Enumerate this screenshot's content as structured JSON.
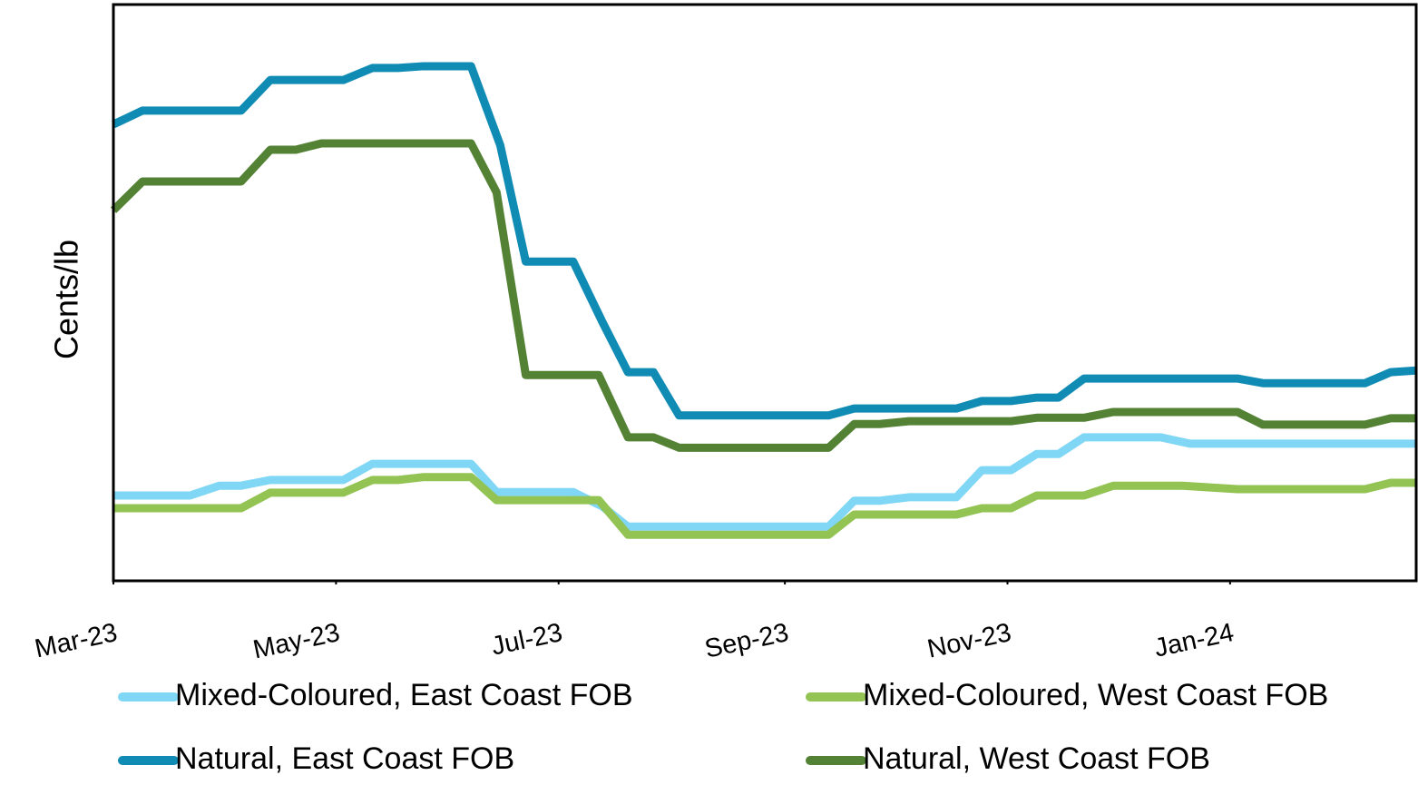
{
  "chart_data": {
    "type": "line",
    "y_label": "Cents/lb",
    "xlim": [
      0,
      357
    ],
    "ylim": [
      0,
      100
    ],
    "xticks": [
      {
        "value": 0,
        "label": "Mar-23"
      },
      {
        "value": 61,
        "label": "May-23"
      },
      {
        "value": 122,
        "label": "Jul-23"
      },
      {
        "value": 184,
        "label": "Sep-23"
      },
      {
        "value": 245,
        "label": "Nov-23"
      },
      {
        "value": 306,
        "label": "Jan-24"
      }
    ],
    "series": [
      {
        "name": "Mixed-Coloured, East Coast FOB",
        "color": "#7fd6f5",
        "x": [
          0,
          21,
          29,
          35,
          43,
          63,
          71,
          98,
          105,
          126,
          134,
          141,
          196,
          203,
          210,
          218,
          231,
          238,
          246,
          253,
          259,
          266,
          287,
          295,
          357
        ],
        "values": [
          14.8,
          14.8,
          16.5,
          16.5,
          17.5,
          17.5,
          20.3,
          20.3,
          15.4,
          15.4,
          12.9,
          9.4,
          9.4,
          13.9,
          13.9,
          14.5,
          14.5,
          19.2,
          19.2,
          22.0,
          22.0,
          24.9,
          24.9,
          23.8,
          23.8
        ]
      },
      {
        "name": "Mixed-Coloured, West Coast FOB",
        "color": "#92c353",
        "x": [
          0,
          35,
          43,
          63,
          71,
          78,
          85,
          98,
          105,
          133,
          141,
          196,
          203,
          231,
          238,
          246,
          253,
          266,
          274,
          293,
          308,
          343,
          350,
          357
        ],
        "values": [
          12.6,
          12.6,
          15.3,
          15.3,
          17.5,
          17.5,
          18.0,
          18.0,
          14.0,
          14.0,
          8.0,
          8.0,
          11.5,
          11.5,
          12.6,
          12.6,
          14.8,
          14.8,
          16.5,
          16.5,
          15.9,
          15.9,
          17.0,
          17.0
        ]
      },
      {
        "name": "Natural, East Coast FOB",
        "color": "#0f8bb4",
        "x": [
          0,
          8,
          35,
          43,
          63,
          71,
          78,
          85,
          98,
          106,
          113,
          126,
          134,
          141,
          148,
          155,
          196,
          203,
          231,
          238,
          246,
          253,
          259,
          266,
          308,
          315,
          343,
          350,
          357
        ],
        "values": [
          79.2,
          81.6,
          81.6,
          86.9,
          86.9,
          89.0,
          89.0,
          89.3,
          89.3,
          75.6,
          55.4,
          55.4,
          44.9,
          36.2,
          36.2,
          28.7,
          28.7,
          29.9,
          29.9,
          31.2,
          31.2,
          31.8,
          31.8,
          35.1,
          35.1,
          34.3,
          34.3,
          36.2,
          36.5
        ]
      },
      {
        "name": "Natural, West Coast FOB",
        "color": "#548235",
        "x": [
          0,
          8,
          35,
          43,
          50,
          57,
          98,
          105,
          113,
          133,
          141,
          148,
          155,
          196,
          203,
          210,
          218,
          246,
          253,
          266,
          274,
          308,
          315,
          343,
          350,
          357
        ],
        "values": [
          64.3,
          69.3,
          69.3,
          74.8,
          74.8,
          75.9,
          75.9,
          67.4,
          35.7,
          35.7,
          24.9,
          24.9,
          23.1,
          23.1,
          27.2,
          27.2,
          27.7,
          27.7,
          28.3,
          28.3,
          29.3,
          29.3,
          27.1,
          27.1,
          28.2,
          28.2
        ]
      }
    ]
  }
}
